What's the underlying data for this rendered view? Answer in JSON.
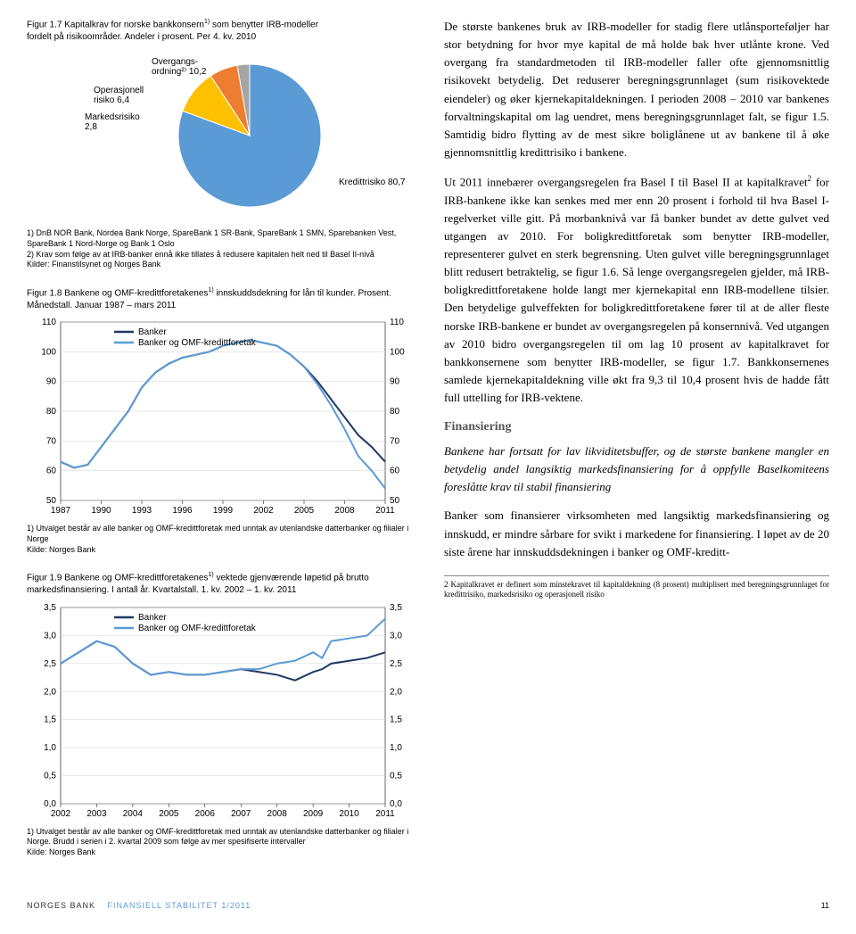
{
  "fig17": {
    "title_line1": "Figur 1.7 Kapitalkrav for norske bankkonsern",
    "super1": "1)",
    "title_line1b": " som benytter IRB-modeller",
    "title_line2": "fordelt på risikoområder. Andeler i prosent. Per 4. kv. 2010",
    "slices": [
      {
        "label": "Kredittrisiko",
        "value": 80.7,
        "color": "#5b9bd5",
        "label_text": "Kredittrisiko 80,7"
      },
      {
        "label": "Overgangsordning",
        "value": 10.2,
        "color": "#ffc000",
        "label_text": "Overgangs-\nordning²⁾ 10,2"
      },
      {
        "label": "Operasjonell risiko",
        "value": 6.4,
        "color": "#ed7d31",
        "label_text": "Operasjonell\nrisiko 6,4"
      },
      {
        "label": "Markedsrisiko",
        "value": 2.8,
        "color": "#a5a5a5",
        "label_text": "Markedsrisiko\n2,8"
      }
    ],
    "footnote1": "1) DnB NOR Bank, Nordea Bank Norge, SpareBank 1 SR-Bank, SpareBank 1 SMN, Sparebanken Vest, SpareBank 1 Nord-Norge og Bank 1 Oslo",
    "footnote2": "2) Krav som følge av at IRB-banker ennå ikke tillates å redusere kapitalen helt ned til Basel II-nivå",
    "footnote3": "Kilder: Finanstilsynet og Norges Bank",
    "bg": "#ffffff"
  },
  "fig18": {
    "title_a": "Figur 1.8 Bankene og OMF-kredittforetakenes",
    "super1": "1)",
    "title_b": " innskuddsdekning for lån til kunder. Prosent. Månedstall. Januar 1987 – mars 2011",
    "ylim": [
      50,
      110
    ],
    "ytick_step": 10,
    "xlim": [
      1987,
      2011
    ],
    "xticks": [
      1987,
      1990,
      1993,
      1996,
      1999,
      2002,
      2005,
      2008,
      2011
    ],
    "series": [
      {
        "name": "Banker",
        "color": "#203864",
        "points": [
          [
            1987,
            63
          ],
          [
            1988,
            61
          ],
          [
            1989,
            62
          ],
          [
            1990,
            68
          ],
          [
            1991,
            74
          ],
          [
            1992,
            80
          ],
          [
            1993,
            88
          ],
          [
            1994,
            93
          ],
          [
            1995,
            96
          ],
          [
            1996,
            98
          ],
          [
            1997,
            99
          ],
          [
            1998,
            100
          ],
          [
            1999,
            102
          ],
          [
            2000,
            103
          ],
          [
            2001,
            104
          ],
          [
            2002,
            103
          ],
          [
            2003,
            102
          ],
          [
            2004,
            99
          ],
          [
            2005,
            95
          ],
          [
            2006,
            90
          ],
          [
            2007,
            84
          ],
          [
            2008,
            78
          ],
          [
            2009,
            72
          ],
          [
            2010,
            68
          ],
          [
            2011,
            63
          ]
        ]
      },
      {
        "name": "Banker og OMF-kredittforetak",
        "color": "#5b9bd5",
        "points": [
          [
            1987,
            63
          ],
          [
            1988,
            61
          ],
          [
            1989,
            62
          ],
          [
            1990,
            68
          ],
          [
            1991,
            74
          ],
          [
            1992,
            80
          ],
          [
            1993,
            88
          ],
          [
            1994,
            93
          ],
          [
            1995,
            96
          ],
          [
            1996,
            98
          ],
          [
            1997,
            99
          ],
          [
            1998,
            100
          ],
          [
            1999,
            102
          ],
          [
            2000,
            103
          ],
          [
            2001,
            104
          ],
          [
            2002,
            103
          ],
          [
            2003,
            102
          ],
          [
            2004,
            99
          ],
          [
            2005,
            95
          ],
          [
            2006,
            89
          ],
          [
            2007,
            82
          ],
          [
            2008,
            74
          ],
          [
            2009,
            65
          ],
          [
            2010,
            60
          ],
          [
            2011,
            54
          ]
        ]
      }
    ],
    "footnote1": "1) Utvalget består av alle banker og OMF-kredittforetak med unntak av utenlandske datterbanker og filialer i Norge",
    "footnote2": "Kilde: Norges Bank",
    "grid_color": "#d0d0d0",
    "bg": "#ffffff"
  },
  "fig19": {
    "title_a": "Figur 1.9 Bankene og OMF-kredittforetakenes",
    "super1": "1)",
    "title_b": " vektede gjenværende løpetid på brutto markedsfinansiering. I antall år. Kvartalstall. 1. kv. 2002 – 1. kv. 2011",
    "ylim": [
      0.0,
      3.5
    ],
    "ytick_step": 0.5,
    "xticks": [
      2002,
      2003,
      2004,
      2005,
      2006,
      2007,
      2008,
      2009,
      2010,
      2011
    ],
    "series": [
      {
        "name": "Banker",
        "color": "#203864",
        "points": [
          [
            2002,
            2.5
          ],
          [
            2002.5,
            2.7
          ],
          [
            2003,
            2.9
          ],
          [
            2003.5,
            2.8
          ],
          [
            2004,
            2.5
          ],
          [
            2004.5,
            2.3
          ],
          [
            2005,
            2.35
          ],
          [
            2005.5,
            2.3
          ],
          [
            2006,
            2.3
          ],
          [
            2006.5,
            2.35
          ],
          [
            2007,
            2.4
          ],
          [
            2007.5,
            2.35
          ],
          [
            2008,
            2.3
          ],
          [
            2008.5,
            2.2
          ],
          [
            2009,
            2.35
          ],
          [
            2009.25,
            2.4
          ],
          [
            2009.5,
            2.5
          ],
          [
            2010,
            2.55
          ],
          [
            2010.5,
            2.6
          ],
          [
            2011,
            2.7
          ]
        ]
      },
      {
        "name": "Banker og OMF-kredittforetak",
        "color": "#5b9bd5",
        "points": [
          [
            2002,
            2.5
          ],
          [
            2002.5,
            2.7
          ],
          [
            2003,
            2.9
          ],
          [
            2003.5,
            2.8
          ],
          [
            2004,
            2.5
          ],
          [
            2004.5,
            2.3
          ],
          [
            2005,
            2.35
          ],
          [
            2005.5,
            2.3
          ],
          [
            2006,
            2.3
          ],
          [
            2006.5,
            2.35
          ],
          [
            2007,
            2.4
          ],
          [
            2007.5,
            2.4
          ],
          [
            2008,
            2.5
          ],
          [
            2008.5,
            2.55
          ],
          [
            2009,
            2.7
          ],
          [
            2009.25,
            2.6
          ],
          [
            2009.5,
            2.9
          ],
          [
            2010,
            2.95
          ],
          [
            2010.5,
            3.0
          ],
          [
            2011,
            3.3
          ]
        ]
      }
    ],
    "footnote1": "1) Utvalget består av alle banker og OMF-kredittforetak med unntak av utenlandske datterbanker og filialer i Norge. Brudd i serien i 2. kvartal 2009 som følge av mer spesifiserte intervaller",
    "footnote2": "Kilde: Norges Bank",
    "grid_color": "#d0d0d0",
    "bg": "#ffffff"
  },
  "body": {
    "p1": "De største bankenes bruk av IRB-modeller for stadig flere utlånsporteføljer har stor betydning for hvor mye kapital de må holde bak hver utlånte krone. Ved overgang fra standardmetoden til IRB-modeller faller ofte gjennomsnittlig risikovekt betydelig. Det reduserer beregningsgrunnlaget (sum risikovektede eiendeler) og øker kjernekapitaldekningen. I perioden 2008 – 2010 var bankenes forvaltningskapital om lag uendret, mens beregningsgrunnlaget falt, se figur 1.5. Samtidig bidro flytting av de mest sikre boliglånene ut av bankene til å øke gjennomsnittlig kredittrisiko i bankene.",
    "p2a": "Ut 2011 innebærer overgangsregelen fra Basel I til Basel II at kapitalkravet",
    "p2_sup": "2",
    "p2b": " for IRB-bankene ikke kan senkes med mer enn 20 prosent i forhold til hva Basel I-regelverket ville gitt. På morbanknivå var få banker bundet av dette gulvet ved utgangen av 2010. For boligkredittforetak som benytter IRB-modeller, representerer gulvet en sterk begrensning. Uten gulvet ville beregningsgrunnlaget blitt redusert betraktelig, se figur 1.6. Så lenge overgangsregelen gjelder, må IRB-boligkredittforetakene holde langt mer kjernekapital enn IRB-modellene tilsier. Den betydelige gulveffekten for boligkredittforetakene fører til at de aller fleste norske IRB-bankene er bundet av overgangsregelen på konsernnivå. Ved utgangen av 2010 bidro overgangsregelen til om lag 10 prosent av kapitalkravet for bankkonsernene som benytter IRB-modeller, se figur 1.7. Bankkonsernenes samlede kjernekapitaldekning ville økt fra 9,3 til 10,4 prosent hvis de hadde fått full uttelling for IRB-vektene.",
    "section_head": "Finansiering",
    "section_lead": "Bankene har fortsatt for lav likviditetsbuffer, og de største bankene mangler en betydelig andel langsiktig markedsfinansiering for å oppfylle Baselkomiteens foreslåtte krav til stabil finansiering",
    "p3": "Banker som finansierer virksomheten med langsiktig markedsfinansiering og innskudd, er mindre sårbare for svikt i markedene for finansiering. I løpet av de 20 siste årene har innskuddsdekningen i banker og OMF-kreditt-",
    "footnote_small": "2  Kapitalkravet er definert som minstekravet til kapitaldekning (8 prosent) multiplisert med beregningsgrunnlaget for kredittrisiko, markedsrisiko og operasjonell risiko"
  },
  "footer": {
    "nb": "NORGES BANK",
    "fs": "FINANSIELL STABILITET 1/2011",
    "page": "11"
  }
}
